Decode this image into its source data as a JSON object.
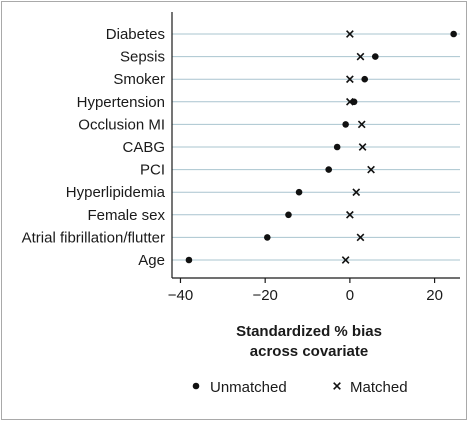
{
  "chart_data": {
    "type": "scatter",
    "categories": [
      "Diabetes",
      "Sepsis",
      "Smoker",
      "Hypertension",
      "Occlusion MI",
      "CABG",
      "PCI",
      "Hyperlipidemia",
      "Female sex",
      "Atrial fibrillation/flutter",
      "Age"
    ],
    "series": [
      {
        "name": "Unmatched",
        "marker": "dot",
        "values": [
          24.5,
          6.0,
          3.5,
          1.0,
          -1.0,
          -3.0,
          -5.0,
          -12.0,
          -14.5,
          -19.5,
          -38.0
        ]
      },
      {
        "name": "Matched",
        "marker": "x",
        "values": [
          0.0,
          2.5,
          0.0,
          0.0,
          2.8,
          3.0,
          5.0,
          1.5,
          0.0,
          2.5,
          -1.0
        ]
      }
    ],
    "xlabel": [
      "Standardized % bias",
      "across covariate"
    ],
    "ylabel": "",
    "xlim": [
      -42,
      26
    ],
    "xticks": [
      -40,
      -20,
      0,
      20
    ],
    "grid": "horizontal",
    "gridline_color": "#a9c4cf",
    "legend_position": "bottom"
  }
}
